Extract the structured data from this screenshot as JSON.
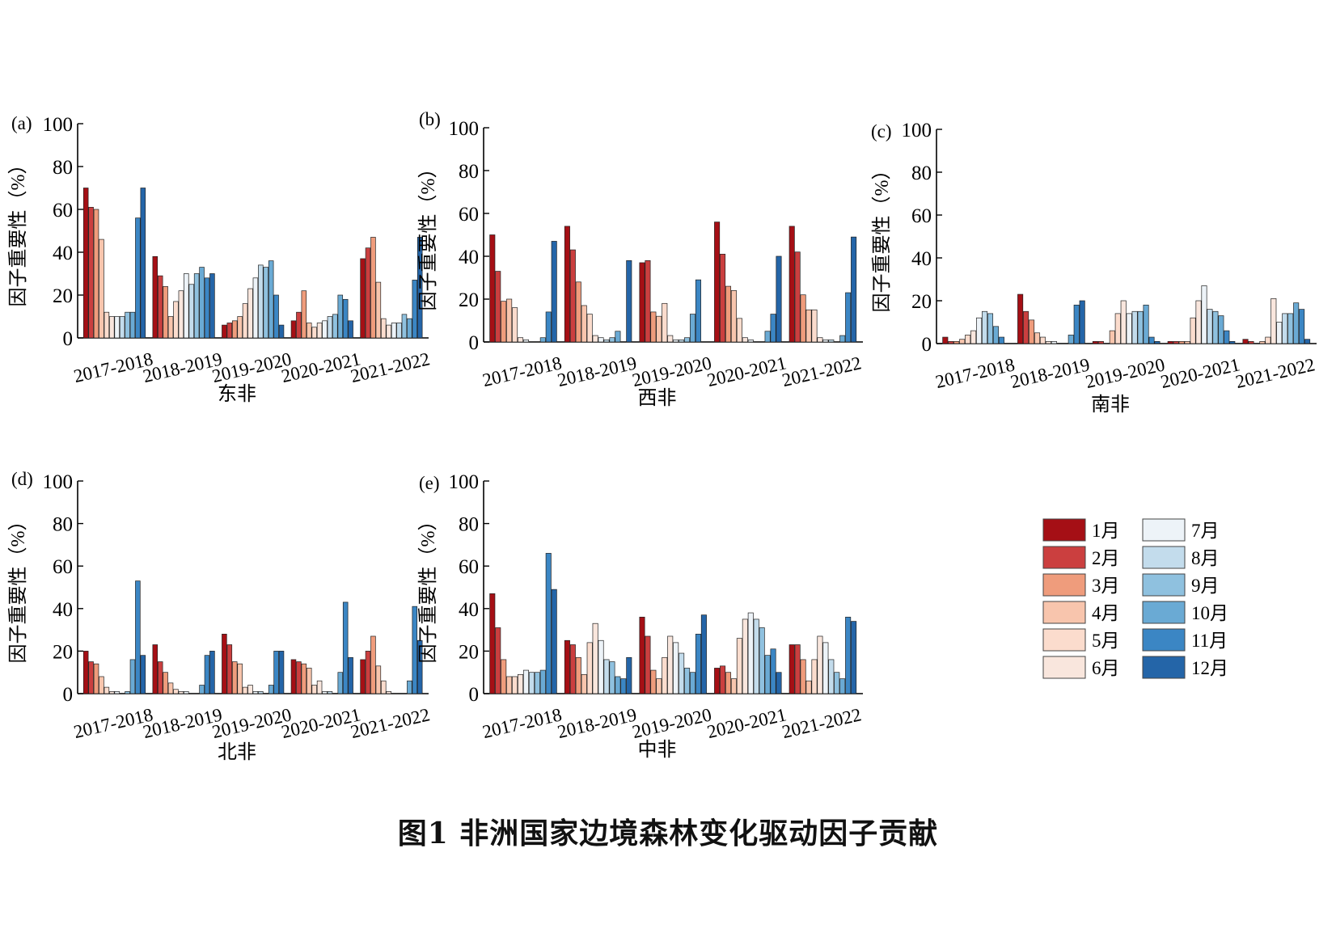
{
  "caption": "图1 非洲国家边境森林变化驱动因子贡献",
  "legend": {
    "items": [
      {
        "label": "1月",
        "color": "#a50f15"
      },
      {
        "label": "2月",
        "color": "#cb3f3f"
      },
      {
        "label": "3月",
        "color": "#ef9c7c"
      },
      {
        "label": "4月",
        "color": "#f8c5ad"
      },
      {
        "label": "5月",
        "color": "#fbdccd"
      },
      {
        "label": "6月",
        "color": "#f9e6dd"
      },
      {
        "label": "7月",
        "color": "#edf3f8"
      },
      {
        "label": "8月",
        "color": "#c3dcec"
      },
      {
        "label": "9月",
        "color": "#8fc1df"
      },
      {
        "label": "10月",
        "color": "#6aaad4"
      },
      {
        "label": "11月",
        "color": "#3b86c4"
      },
      {
        "label": "12月",
        "color": "#2465a8"
      }
    ]
  },
  "chart_data": [
    {
      "panel": "(a)",
      "type": "bar",
      "xlabel": "东非",
      "ylabel": "因子重要性（%）",
      "ylim": [
        0,
        100
      ],
      "yticks": [
        0,
        20,
        40,
        60,
        80,
        100
      ],
      "categories": [
        "2017-2018",
        "2018-2019",
        "2019-2020",
        "2020-2021",
        "2021-2022"
      ],
      "series": [
        {
          "name": "1月",
          "values": [
            70,
            38,
            6,
            8,
            37
          ]
        },
        {
          "name": "2月",
          "values": [
            61,
            29,
            7,
            12,
            42
          ]
        },
        {
          "name": "3月",
          "values": [
            60,
            24,
            8,
            22,
            47
          ]
        },
        {
          "name": "4月",
          "values": [
            46,
            10,
            10,
            7,
            26
          ]
        },
        {
          "name": "5月",
          "values": [
            12,
            17,
            16,
            5,
            9
          ]
        },
        {
          "name": "6月",
          "values": [
            10,
            22,
            23,
            7,
            6
          ]
        },
        {
          "name": "7月",
          "values": [
            10,
            30,
            28,
            8,
            7
          ]
        },
        {
          "name": "8月",
          "values": [
            10,
            25,
            34,
            10,
            7
          ]
        },
        {
          "name": "9月",
          "values": [
            12,
            30,
            33,
            11,
            11
          ]
        },
        {
          "name": "10月",
          "values": [
            12,
            33,
            36,
            20,
            9
          ]
        },
        {
          "name": "11月",
          "values": [
            56,
            28,
            20,
            18,
            27
          ]
        },
        {
          "name": "12月",
          "values": [
            70,
            30,
            6,
            8,
            47
          ]
        }
      ]
    },
    {
      "panel": "(b)",
      "type": "bar",
      "xlabel": "西非",
      "ylabel": "因子重要性（%）",
      "ylim": [
        0,
        100
      ],
      "yticks": [
        0,
        20,
        40,
        60,
        80,
        100
      ],
      "categories": [
        "2017-2018",
        "2018-2019",
        "2019-2020",
        "2020-2021",
        "2021-2022"
      ],
      "series": [
        {
          "name": "1月",
          "values": [
            50,
            54,
            37,
            56,
            54
          ]
        },
        {
          "name": "2月",
          "values": [
            33,
            43,
            38,
            41,
            42
          ]
        },
        {
          "name": "3月",
          "values": [
            19,
            28,
            14,
            26,
            22
          ]
        },
        {
          "name": "4月",
          "values": [
            20,
            17,
            12,
            24,
            15
          ]
        },
        {
          "name": "5月",
          "values": [
            16,
            13,
            18,
            11,
            15
          ]
        },
        {
          "name": "6月",
          "values": [
            2,
            3,
            3,
            2,
            2
          ]
        },
        {
          "name": "7月",
          "values": [
            1,
            2,
            1,
            1,
            1
          ]
        },
        {
          "name": "8月",
          "values": [
            0,
            1,
            1,
            0,
            1
          ]
        },
        {
          "name": "9月",
          "values": [
            0,
            2,
            2,
            0,
            0
          ]
        },
        {
          "name": "10月",
          "values": [
            2,
            5,
            13,
            5,
            3
          ]
        },
        {
          "name": "11月",
          "values": [
            14,
            0,
            29,
            13,
            23
          ]
        },
        {
          "name": "12月",
          "values": [
            47,
            38,
            0,
            40,
            49
          ]
        }
      ]
    },
    {
      "panel": "(c)",
      "type": "bar",
      "xlabel": "南非",
      "ylabel": "因子重要性（%）",
      "ylim": [
        0,
        100
      ],
      "yticks": [
        0,
        20,
        40,
        60,
        80,
        100
      ],
      "categories": [
        "2017-2018",
        "2018-2019",
        "2019-2020",
        "2020-2021",
        "2021-2022"
      ],
      "series": [
        {
          "name": "1月",
          "values": [
            3,
            23,
            1,
            1,
            2
          ]
        },
        {
          "name": "2月",
          "values": [
            1,
            15,
            1,
            1,
            1
          ]
        },
        {
          "name": "3月",
          "values": [
            1,
            11,
            0,
            1,
            0
          ]
        },
        {
          "name": "4月",
          "values": [
            2,
            5,
            6,
            1,
            1
          ]
        },
        {
          "name": "5月",
          "values": [
            4,
            3,
            14,
            12,
            3
          ]
        },
        {
          "name": "6月",
          "values": [
            6,
            1,
            20,
            20,
            21
          ]
        },
        {
          "name": "7月",
          "values": [
            12,
            1,
            14,
            27,
            10
          ]
        },
        {
          "name": "8月",
          "values": [
            15,
            0,
            15,
            16,
            14
          ]
        },
        {
          "name": "9月",
          "values": [
            14,
            0,
            15,
            15,
            14
          ]
        },
        {
          "name": "10月",
          "values": [
            8,
            4,
            18,
            13,
            19
          ]
        },
        {
          "name": "11月",
          "values": [
            3,
            18,
            3,
            6,
            16
          ]
        },
        {
          "name": "12月",
          "values": [
            0,
            20,
            1,
            1,
            2
          ]
        }
      ]
    },
    {
      "panel": "(d)",
      "type": "bar",
      "xlabel": "北非",
      "ylabel": "因子重要性（%）",
      "ylim": [
        0,
        100
      ],
      "yticks": [
        0,
        20,
        40,
        60,
        80,
        100
      ],
      "categories": [
        "2017-2018",
        "2018-2019",
        "2019-2020",
        "2020-2021",
        "2021-2022"
      ],
      "series": [
        {
          "name": "1月",
          "values": [
            20,
            23,
            28,
            16,
            16
          ]
        },
        {
          "name": "2月",
          "values": [
            15,
            15,
            23,
            15,
            20
          ]
        },
        {
          "name": "3月",
          "values": [
            14,
            10,
            15,
            14,
            27
          ]
        },
        {
          "name": "4月",
          "values": [
            8,
            5,
            14,
            12,
            13
          ]
        },
        {
          "name": "5月",
          "values": [
            3,
            2,
            3,
            4,
            6
          ]
        },
        {
          "name": "6月",
          "values": [
            1,
            1,
            4,
            6,
            1
          ]
        },
        {
          "name": "7月",
          "values": [
            1,
            1,
            1,
            1,
            0
          ]
        },
        {
          "name": "8月",
          "values": [
            0,
            0,
            1,
            1,
            0
          ]
        },
        {
          "name": "9月",
          "values": [
            1,
            0,
            0,
            0,
            0
          ]
        },
        {
          "name": "10月",
          "values": [
            16,
            4,
            4,
            10,
            6
          ]
        },
        {
          "name": "11月",
          "values": [
            53,
            18,
            20,
            43,
            41
          ]
        },
        {
          "name": "12月",
          "values": [
            18,
            20,
            20,
            17,
            25
          ]
        }
      ]
    },
    {
      "panel": "(e)",
      "type": "bar",
      "xlabel": "中非",
      "ylabel": "因子重要性（%）",
      "ylim": [
        0,
        100
      ],
      "yticks": [
        0,
        20,
        40,
        60,
        80,
        100
      ],
      "categories": [
        "2017-2018",
        "2018-2019",
        "2019-2020",
        "2020-2021",
        "2021-2022"
      ],
      "series": [
        {
          "name": "1月",
          "values": [
            47,
            25,
            36,
            12,
            23
          ]
        },
        {
          "name": "2月",
          "values": [
            31,
            23,
            27,
            13,
            23
          ]
        },
        {
          "name": "3月",
          "values": [
            16,
            17,
            11,
            10,
            16
          ]
        },
        {
          "name": "4月",
          "values": [
            8,
            9,
            7,
            7,
            6
          ]
        },
        {
          "name": "5月",
          "values": [
            8,
            24,
            17,
            26,
            16
          ]
        },
        {
          "name": "6月",
          "values": [
            9,
            33,
            27,
            35,
            27
          ]
        },
        {
          "name": "7月",
          "values": [
            11,
            25,
            24,
            38,
            24
          ]
        },
        {
          "name": "8月",
          "values": [
            10,
            16,
            19,
            35,
            16
          ]
        },
        {
          "name": "9月",
          "values": [
            10,
            15,
            12,
            31,
            10
          ]
        },
        {
          "name": "10月",
          "values": [
            11,
            8,
            10,
            18,
            7
          ]
        },
        {
          "name": "11月",
          "values": [
            66,
            7,
            28,
            21,
            36
          ]
        },
        {
          "name": "12月",
          "values": [
            49,
            17,
            37,
            10,
            34
          ]
        }
      ]
    }
  ]
}
